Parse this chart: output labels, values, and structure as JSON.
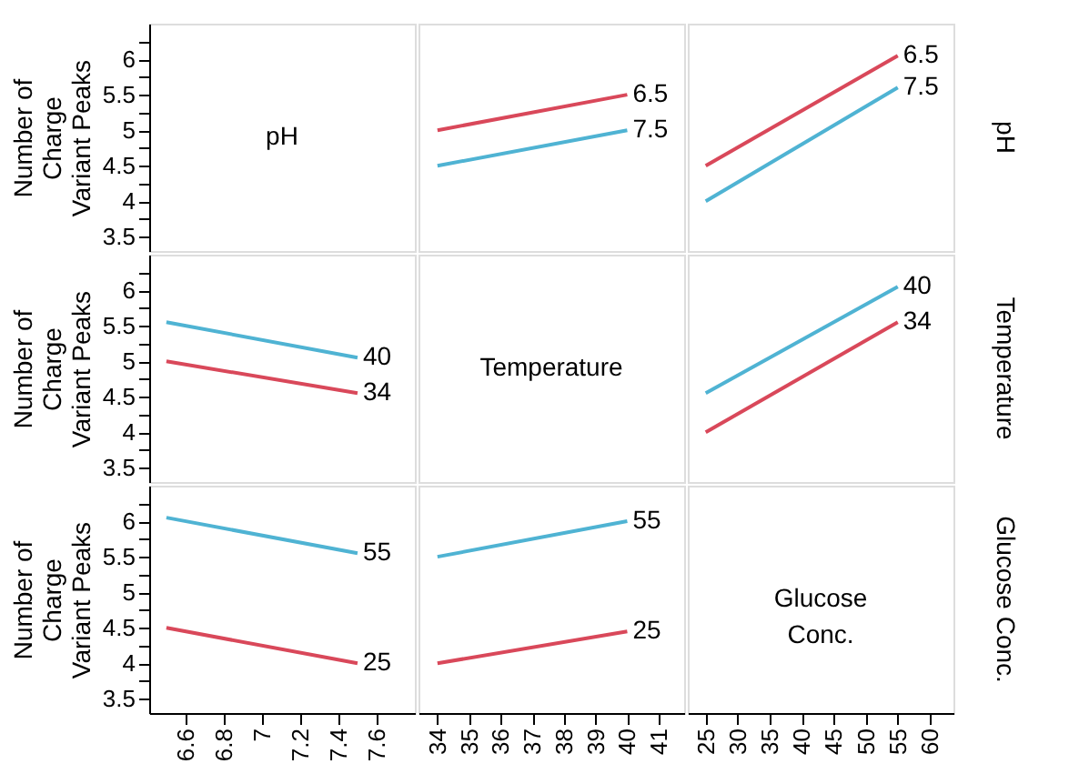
{
  "chart_data": [
    {
      "type": "line",
      "annotations": [
        "pH"
      ],
      "xlim": [
        6.41,
        7.8
      ],
      "tick_labels": "y",
      "ylabel": "Number of\nCharge\nVariant Peaks",
      "ylim": [
        3.3,
        6.5
      ],
      "yticks": [
        3.5,
        {
          "value": 3.75,
          "label": null
        },
        4,
        {
          "value": 4.25,
          "label": null
        },
        4.5,
        {
          "value": 4.75,
          "label": null
        },
        5,
        {
          "value": 5.25,
          "label": null
        },
        5.5,
        {
          "value": 5.75,
          "label": null
        },
        6,
        {
          "value": 6.25,
          "label": null
        }
      ]
    },
    {
      "type": "line",
      "x": [
        34,
        40
      ],
      "xlim": [
        33.4,
        41.8
      ],
      "ylim": [
        3.3,
        6.5
      ],
      "tick_labels": false,
      "series": [
        {
          "name": "6.5",
          "color": "#d9485a",
          "values": [
            5.0,
            5.5
          ]
        },
        {
          "name": "7.5",
          "color": "#4fb3d3",
          "values": [
            4.5,
            5.0
          ]
        }
      ]
    },
    {
      "type": "line",
      "x": [
        25,
        55
      ],
      "xlim": [
        22.2,
        63.7
      ],
      "ylim": [
        3.3,
        6.5
      ],
      "tick_labels": false,
      "y2label": "pH",
      "series": [
        {
          "name": "6.5",
          "color": "#d9485a",
          "values": [
            4.5,
            6.05
          ]
        },
        {
          "name": "7.5",
          "color": "#4fb3d3",
          "values": [
            4.0,
            5.6
          ]
        }
      ]
    },
    {
      "type": "line",
      "x": [
        6.5,
        7.5
      ],
      "xlim": [
        6.41,
        7.8
      ],
      "ylabel": "Number of\nCharge\nVariant Peaks",
      "ylim": [
        3.3,
        6.5
      ],
      "yticks": [
        3.5,
        {
          "value": 3.75,
          "label": null
        },
        4,
        {
          "value": 4.25,
          "label": null
        },
        4.5,
        {
          "value": 4.75,
          "label": null
        },
        5,
        {
          "value": 5.25,
          "label": null
        },
        5.5,
        {
          "value": 5.75,
          "label": null
        },
        6,
        {
          "value": 6.25,
          "label": null
        }
      ],
      "tick_labels": "y",
      "series": [
        {
          "name": "40",
          "color": "#4fb3d3",
          "values": [
            5.55,
            5.05
          ]
        },
        {
          "name": "34",
          "color": "#d9485a",
          "values": [
            5.0,
            4.55
          ]
        }
      ]
    },
    {
      "type": "other",
      "annotations": [
        "Temperature"
      ]
    },
    {
      "type": "line",
      "x": [
        25,
        55
      ],
      "xlim": [
        22.2,
        63.7
      ],
      "ylim": [
        3.3,
        6.5
      ],
      "tick_labels": false,
      "y2label": "Temperature",
      "series": [
        {
          "name": "40",
          "color": "#4fb3d3",
          "values": [
            4.55,
            6.05
          ]
        },
        {
          "name": "34",
          "color": "#d9485a",
          "values": [
            4.0,
            5.55
          ]
        }
      ]
    },
    {
      "type": "line",
      "x": [
        6.5,
        7.5
      ],
      "xlim": [
        6.41,
        7.8
      ],
      "xticks": [
        6.6,
        6.8,
        7,
        7.2,
        7.4,
        7.6
      ],
      "ylabel": "Number of\nCharge\nVariant Peaks",
      "ylim": [
        3.3,
        6.5
      ],
      "yticks": [
        3.5,
        {
          "value": 3.75,
          "label": null
        },
        4,
        {
          "value": 4.25,
          "label": null
        },
        4.5,
        {
          "value": 4.75,
          "label": null
        },
        5,
        {
          "value": 5.25,
          "label": null
        },
        5.5,
        {
          "value": 5.75,
          "label": null
        },
        6,
        {
          "value": 6.25,
          "label": null
        }
      ],
      "series": [
        {
          "name": "55",
          "color": "#4fb3d3",
          "values": [
            6.05,
            5.55
          ]
        },
        {
          "name": "25",
          "color": "#d9485a",
          "values": [
            4.5,
            4.0
          ]
        }
      ]
    },
    {
      "type": "line",
      "x": [
        34,
        40
      ],
      "xlim": [
        33.4,
        41.8
      ],
      "xticks": [
        34,
        35,
        36,
        37,
        38,
        39,
        40,
        41
      ],
      "ylim": [
        3.3,
        6.5
      ],
      "tick_labels": "x",
      "series": [
        {
          "name": "55",
          "color": "#4fb3d3",
          "values": [
            5.5,
            6.0
          ]
        },
        {
          "name": "25",
          "color": "#d9485a",
          "values": [
            4.0,
            4.45
          ]
        }
      ]
    },
    {
      "type": "line",
      "annotations": [
        "Glucose\nConc."
      ],
      "xlim": [
        22.2,
        63.7
      ],
      "xticks": [
        25,
        30,
        35,
        40,
        45,
        50,
        55,
        60
      ],
      "ylim": [
        3.3,
        6.5
      ],
      "tick_labels": "x",
      "y2label": "Glucose Conc."
    }
  ]
}
